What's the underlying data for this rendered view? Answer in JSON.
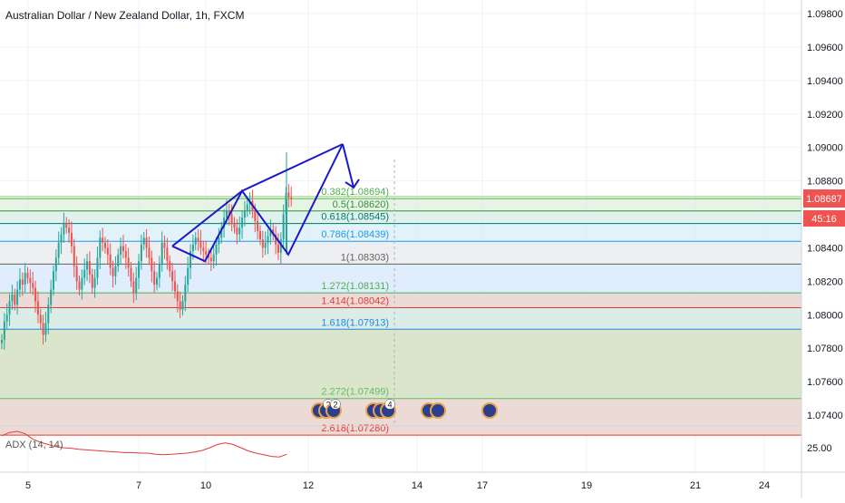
{
  "header": {
    "title": "Australian Dollar / New Zealand Dollar, 1h, FXCM"
  },
  "price_axis": {
    "ticks": [
      "1.09800",
      "1.09600",
      "1.09400",
      "1.09200",
      "1.09000",
      "1.08800",
      "1.08600",
      "1.08400",
      "1.08200",
      "1.08000",
      "1.07800",
      "1.07600",
      "1.07400"
    ],
    "current_price": "1.08687",
    "countdown": "45:16",
    "current_price_color": "#ef5350"
  },
  "time_axis": {
    "labels": [
      "5",
      "7",
      "10",
      "12",
      "14",
      "17",
      "19",
      "21",
      "24"
    ]
  },
  "fib_levels": [
    {
      "ratio": "0.382",
      "price": 1.08694,
      "label": "0.382(1.08694)",
      "color": "#4caf50"
    },
    {
      "ratio": "0.5",
      "price": 1.0862,
      "label": "0.5(1.08620)",
      "color": "#388e3c"
    },
    {
      "ratio": "0.618",
      "price": 1.08545,
      "label": "0.618(1.08545)",
      "color": "#00796b"
    },
    {
      "ratio": "0.786",
      "price": 1.08439,
      "label": "0.786(1.08439)",
      "color": "#2196f3"
    },
    {
      "ratio": "1",
      "price": 1.08303,
      "label": "1(1.08303)",
      "color": "#616161"
    },
    {
      "ratio": "1.272",
      "price": 1.08131,
      "label": "1.272(1.08131)",
      "color": "#4caf50"
    },
    {
      "ratio": "1.414",
      "price": 1.08042,
      "label": "1.414(1.08042)",
      "color": "#e53935"
    },
    {
      "ratio": "1.618",
      "price": 1.07913,
      "label": "1.618(1.07913)",
      "color": "#1e88e5"
    },
    {
      "ratio": "2.272",
      "price": 1.07499,
      "label": "2.272(1.07499)",
      "color": "#66bb6a"
    },
    {
      "ratio": "2.618",
      "price": 1.0728,
      "label": "2.618(1.07280)",
      "color": "#e53935"
    }
  ],
  "event_badges": [
    "2",
    "2",
    "4"
  ],
  "adx": {
    "label": "ADX (14, 14)",
    "tick": "25.00"
  },
  "colors": {
    "up": "#26a69a",
    "down": "#ef5350",
    "pattern": "#1a1ac8",
    "adx_line": "#e53935",
    "grid": "#f0f3fa"
  },
  "chart_data": {
    "type": "candlestick",
    "title": "Australian Dollar / New Zealand Dollar, 1h, FXCM",
    "ylim": [
      1.0731,
      1.0991
    ],
    "x_labels": [
      "5",
      "7",
      "10",
      "12",
      "14",
      "17",
      "19",
      "21",
      "24"
    ],
    "candle_closes": [
      1.0785,
      1.0796,
      1.08,
      1.0808,
      1.0812,
      1.0806,
      1.0815,
      1.0821,
      1.0818,
      1.0825,
      1.0822,
      1.0819,
      1.0816,
      1.0808,
      1.08,
      1.0795,
      1.0788,
      1.0795,
      1.0806,
      1.0815,
      1.0826,
      1.0834,
      1.0843,
      1.0848,
      1.0855,
      1.0852,
      1.0849,
      1.0841,
      1.0829,
      1.082,
      1.0815,
      1.0822,
      1.0827,
      1.0832,
      1.0824,
      1.0816,
      1.0822,
      1.0834,
      1.0846,
      1.0843,
      1.084,
      1.0836,
      1.0828,
      1.0823,
      1.0829,
      1.0836,
      1.0841,
      1.0838,
      1.0834,
      1.0828,
      1.082,
      1.0813,
      1.0822,
      1.0832,
      1.0842,
      1.0846,
      1.084,
      1.0834,
      1.0826,
      1.0818,
      1.0822,
      1.083,
      1.0843,
      1.084,
      1.0832,
      1.0826,
      1.082,
      1.0814,
      1.0808,
      1.0803,
      1.0808,
      1.0818,
      1.0828,
      1.0838,
      1.0842,
      1.0846,
      1.0844,
      1.084,
      1.0838,
      1.0836,
      1.0834,
      1.0832,
      1.0836,
      1.0842,
      1.0846,
      1.0852,
      1.0858,
      1.0862,
      1.086,
      1.0855,
      1.0852,
      1.0848,
      1.0852,
      1.0858,
      1.0862,
      1.0866,
      1.0868,
      1.0862,
      1.0856,
      1.085,
      1.0845,
      1.084,
      1.0843,
      1.0847,
      1.0851,
      1.0848,
      1.0842,
      1.0837,
      1.0845,
      1.086,
      1.0873,
      1.087,
      1.0869
    ],
    "harmonic_pattern_prices": [
      1.0841,
      1.0832,
      1.0874,
      1.0836,
      1.0902,
      1.0876
    ],
    "adx_values": [
      27.2,
      27.8,
      28.0,
      27.6,
      26.6,
      26.0,
      25.6,
      25.2,
      25.0,
      24.9,
      24.7,
      24.6,
      24.5,
      24.4,
      24.3,
      24.2,
      24.1,
      24.1,
      24.0,
      24.0,
      23.8,
      23.7,
      23.8,
      23.9,
      24.0,
      24.2,
      24.5,
      25.0,
      25.6,
      25.9,
      25.6,
      25.0,
      24.4,
      24.0,
      23.7,
      23.4,
      23.3,
      23.8
    ]
  }
}
